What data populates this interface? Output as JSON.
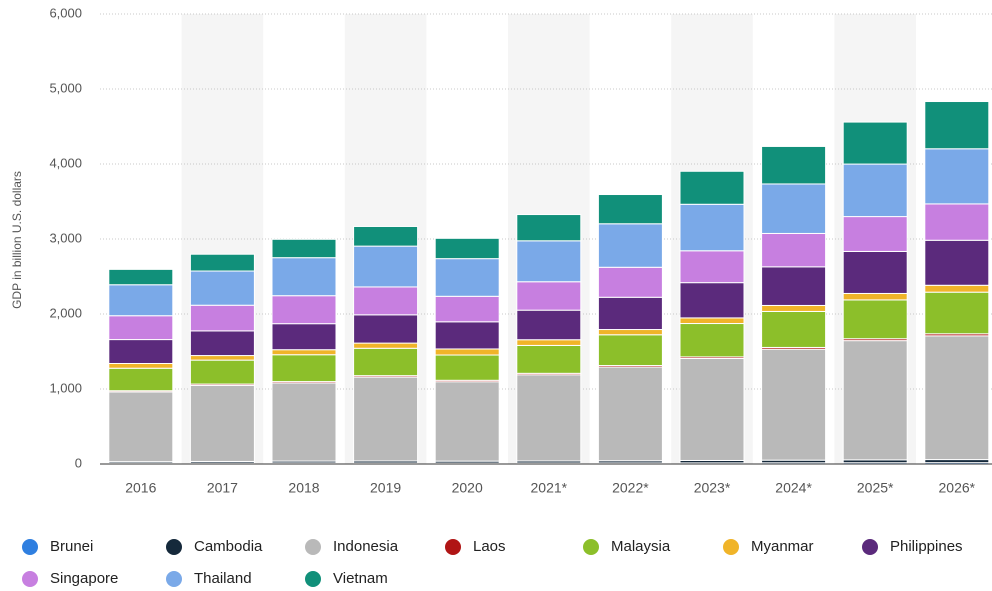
{
  "chart_data": {
    "type": "stacked_bar",
    "y_label": "GDP in billion U.S. dollars",
    "categories": [
      "2016",
      "2017",
      "2018",
      "2019",
      "2020",
      "2021*",
      "2022*",
      "2023*",
      "2024*",
      "2025*",
      "2026*"
    ],
    "ylim": [
      0,
      6000
    ],
    "yticks": [
      0,
      {
        "value": 1000,
        "label": "1,000"
      },
      {
        "value": 2000,
        "label": "2,000"
      },
      {
        "value": 3000,
        "label": "3,000"
      },
      {
        "value": 4000,
        "label": "4,000"
      },
      {
        "value": 5000,
        "label": "5,000"
      },
      {
        "value": 6000,
        "label": "6,000"
      }
    ],
    "grid": true,
    "legend": "bottom",
    "series": [
      {
        "name": "Brunei",
        "color": "#2f7fe0",
        "values": [
          11,
          12,
          14,
          13,
          12,
          13,
          14,
          15,
          16,
          17,
          18
        ]
      },
      {
        "name": "Cambodia",
        "color": "#15293b",
        "values": [
          20,
          22,
          25,
          27,
          26,
          27,
          29,
          32,
          35,
          38,
          41
        ]
      },
      {
        "name": "Indonesia",
        "color": "#b9b9b9",
        "values": [
          930,
          1015,
          1042,
          1119,
          1059,
          1150,
          1250,
          1360,
          1480,
          1590,
          1650
        ]
      },
      {
        "name": "Laos",
        "color": "#b01515",
        "values": [
          16,
          17,
          18,
          19,
          19,
          19,
          20,
          21,
          23,
          25,
          27
        ]
      },
      {
        "name": "Malaysia",
        "color": "#8cbf2a",
        "values": [
          300,
          319,
          358,
          365,
          337,
          372,
          410,
          445,
          480,
          518,
          555
        ]
      },
      {
        "name": "Myanmar",
        "color": "#f0b429",
        "values": [
          63,
          61,
          67,
          69,
          81,
          76,
          70,
          75,
          80,
          86,
          92
        ]
      },
      {
        "name": "Philippines",
        "color": "#5b2a7c",
        "values": [
          319,
          329,
          347,
          377,
          362,
          394,
          430,
          470,
          515,
          560,
          600
        ]
      },
      {
        "name": "Singapore",
        "color": "#c77fe0",
        "values": [
          318,
          342,
          373,
          372,
          340,
          379,
          400,
          425,
          445,
          465,
          485
        ]
      },
      {
        "name": "Thailand",
        "color": "#7aa9e8",
        "values": [
          413,
          456,
          507,
          544,
          502,
          546,
          580,
          620,
          660,
          700,
          735
        ]
      },
      {
        "name": "Vietnam",
        "color": "#11907a",
        "values": [
          205,
          224,
          245,
          262,
          271,
          350,
          390,
          440,
          500,
          560,
          630
        ]
      }
    ]
  }
}
